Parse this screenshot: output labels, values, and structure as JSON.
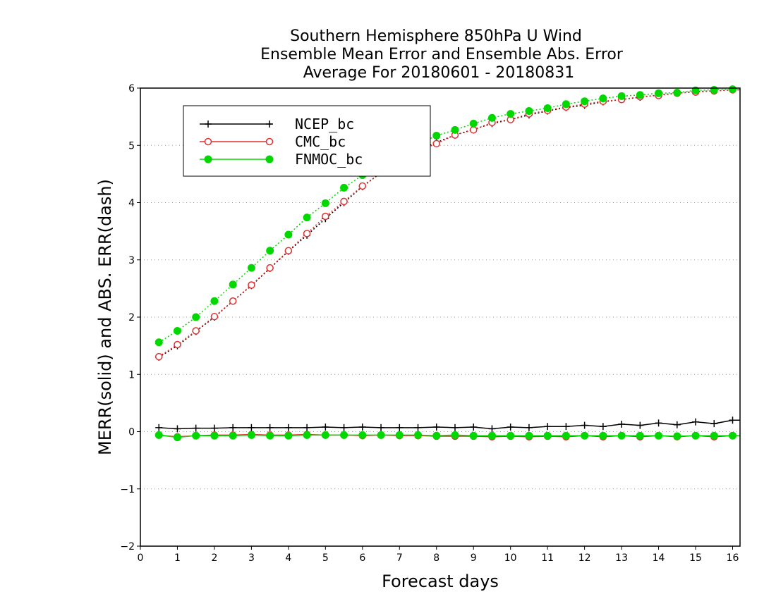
{
  "chart_data": {
    "type": "line",
    "title": [
      "Southern Hemisphere 850hPa U Wind",
      "Ensemble Mean Error and Ensemble Abs. Error",
      "Average For 20180601 - 20180831"
    ],
    "xlabel": "Forecast days",
    "ylabel": "MERR(solid) and ABS. ERR(dash)",
    "xlim": [
      0,
      16.2
    ],
    "ylim": [
      -2,
      6
    ],
    "x_ticks": [
      0,
      1,
      2,
      3,
      4,
      5,
      6,
      7,
      8,
      9,
      10,
      11,
      12,
      13,
      14,
      15,
      16
    ],
    "y_ticks": [
      -2,
      -1,
      0,
      1,
      2,
      3,
      4,
      5,
      6
    ],
    "y_tick_labels": [
      "−2",
      "−1",
      "0",
      "1",
      "2",
      "3",
      "4",
      "5",
      "6"
    ],
    "grid": "horizontal dotted",
    "legend_position": "top-left",
    "x": [
      0.5,
      1.0,
      1.5,
      2.0,
      2.5,
      3.0,
      3.5,
      4.0,
      4.5,
      5.0,
      5.5,
      6.0,
      6.5,
      7.0,
      7.5,
      8.0,
      8.5,
      9.0,
      9.5,
      10.0,
      10.5,
      11.0,
      11.5,
      12.0,
      12.5,
      13.0,
      13.5,
      14.0,
      14.5,
      15.0,
      15.5,
      16.0,
      16.2
    ],
    "series": [
      {
        "name": "NCEP_bc",
        "color": "#000000",
        "marker": "plus",
        "merr": [
          0.07,
          0.05,
          0.06,
          0.06,
          0.07,
          0.07,
          0.07,
          0.07,
          0.07,
          0.08,
          0.07,
          0.08,
          0.07,
          0.07,
          0.07,
          0.08,
          0.07,
          0.08,
          0.05,
          0.08,
          0.07,
          0.09,
          0.09,
          0.11,
          0.09,
          0.13,
          0.11,
          0.15,
          0.12,
          0.17,
          0.14,
          0.2,
          0.2
        ],
        "abs_err": [
          1.3,
          1.5,
          1.75,
          2.0,
          2.28,
          2.55,
          2.85,
          3.15,
          3.43,
          3.72,
          4.0,
          4.28,
          4.52,
          4.75,
          4.92,
          5.05,
          5.18,
          5.28,
          5.38,
          5.45,
          5.53,
          5.6,
          5.66,
          5.7,
          5.76,
          5.8,
          5.84,
          5.88,
          5.91,
          5.94,
          5.95,
          5.97,
          5.97
        ]
      },
      {
        "name": "CMC_bc",
        "color": "#e03030",
        "marker": "open-circle",
        "merr": [
          -0.06,
          -0.09,
          -0.07,
          -0.06,
          -0.06,
          -0.05,
          -0.06,
          -0.06,
          -0.05,
          -0.06,
          -0.06,
          -0.07,
          -0.06,
          -0.07,
          -0.07,
          -0.08,
          -0.08,
          -0.08,
          -0.09,
          -0.08,
          -0.09,
          -0.08,
          -0.09,
          -0.07,
          -0.09,
          -0.07,
          -0.09,
          -0.07,
          -0.09,
          -0.07,
          -0.09,
          -0.07,
          -0.07
        ],
        "abs_err": [
          1.31,
          1.52,
          1.76,
          2.01,
          2.28,
          2.56,
          2.86,
          3.16,
          3.46,
          3.76,
          4.02,
          4.29,
          4.52,
          4.74,
          4.9,
          5.03,
          5.18,
          5.27,
          5.4,
          5.45,
          5.55,
          5.61,
          5.67,
          5.72,
          5.77,
          5.8,
          5.85,
          5.87,
          5.91,
          5.93,
          5.95,
          5.97,
          5.97
        ]
      },
      {
        "name": "FNMOC_bc",
        "color": "#00d800",
        "marker": "filled-circle",
        "merr": [
          -0.06,
          -0.1,
          -0.07,
          -0.07,
          -0.07,
          -0.06,
          -0.07,
          -0.07,
          -0.06,
          -0.06,
          -0.06,
          -0.06,
          -0.06,
          -0.06,
          -0.06,
          -0.07,
          -0.06,
          -0.07,
          -0.07,
          -0.07,
          -0.07,
          -0.07,
          -0.07,
          -0.07,
          -0.07,
          -0.07,
          -0.07,
          -0.07,
          -0.08,
          -0.07,
          -0.07,
          -0.07,
          -0.07
        ],
        "abs_err": [
          1.56,
          1.76,
          2.0,
          2.28,
          2.57,
          2.86,
          3.16,
          3.44,
          3.74,
          3.99,
          4.26,
          4.48,
          4.7,
          4.92,
          5.02,
          5.17,
          5.27,
          5.38,
          5.48,
          5.55,
          5.6,
          5.65,
          5.72,
          5.77,
          5.82,
          5.86,
          5.88,
          5.91,
          5.92,
          5.96,
          5.97,
          5.98,
          5.98
        ]
      }
    ]
  }
}
